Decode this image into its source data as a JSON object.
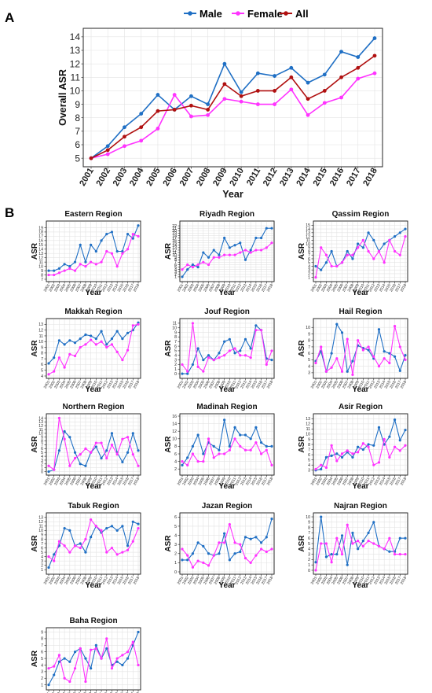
{
  "figure": {
    "panel_labels": [
      "A",
      "B"
    ],
    "axis_labels": {
      "x": "Year",
      "y_main": "Overall ASR",
      "y_small": "ASR"
    },
    "years": [
      "2001",
      "2002",
      "2003",
      "2004",
      "2005",
      "2006",
      "2007",
      "2008",
      "2009",
      "2010",
      "2011",
      "2012",
      "2013",
      "2014",
      "2015",
      "2016",
      "2017",
      "2018"
    ],
    "colors": {
      "Male": "#1f6fc4",
      "Female": "#ff33ff",
      "All": "#b01010"
    }
  },
  "chart_data": [
    {
      "type": "line",
      "panel": "A",
      "title": "",
      "xlabel": "Year",
      "ylabel": "Overall ASR",
      "ylim": [
        4.6,
        14.4
      ],
      "yticks": [
        5,
        6,
        7,
        8,
        9,
        10,
        11,
        12,
        13,
        14
      ],
      "grid": true,
      "legend": "top",
      "x": [
        "2001",
        "2002",
        "2003",
        "2004",
        "2005",
        "2006",
        "2007",
        "2008",
        "2009",
        "2010",
        "2011",
        "2012",
        "2013",
        "2014",
        "2015",
        "2016",
        "2017",
        "2018"
      ],
      "series": [
        {
          "name": "Male",
          "color": "#1f6fc4",
          "values": [
            5.0,
            5.9,
            7.3,
            8.3,
            9.7,
            8.6,
            9.6,
            9.0,
            12.0,
            9.9,
            11.3,
            11.1,
            11.7,
            10.6,
            11.2,
            12.9,
            12.5,
            13.9
          ]
        },
        {
          "name": "Female",
          "color": "#ff33ff",
          "values": [
            5.0,
            5.3,
            5.9,
            6.3,
            7.2,
            9.7,
            8.1,
            8.2,
            9.4,
            9.2,
            9.0,
            9.0,
            10.1,
            8.2,
            9.1,
            9.5,
            10.9,
            11.3
          ]
        },
        {
          "name": "All",
          "color": "#b01010",
          "values": [
            5.0,
            5.6,
            6.6,
            7.3,
            8.5,
            8.6,
            8.9,
            8.6,
            10.5,
            9.6,
            10.0,
            10.0,
            11.0,
            9.4,
            10.0,
            11.0,
            11.7,
            12.6
          ]
        }
      ]
    },
    {
      "type": "line",
      "panel": "B",
      "title": "Eastern Region",
      "xlabel": "Year",
      "ylabel": "ASR",
      "ylim": [
        7,
        20
      ],
      "yticks": [
        7,
        8,
        9,
        10,
        11,
        12,
        13,
        14,
        15,
        16,
        17,
        18,
        19
      ],
      "series": [
        {
          "name": "Male",
          "values": [
            9,
            9,
            9.5,
            10.5,
            10,
            11,
            15,
            11,
            15,
            13.5,
            16,
            17.5,
            18,
            13.5,
            13.5,
            17.5,
            16.5,
            19.5
          ]
        },
        {
          "name": "Female",
          "values": [
            8,
            8,
            8.5,
            9,
            9.5,
            9,
            10.5,
            10,
            11,
            10.5,
            11,
            13.5,
            13,
            10,
            13,
            14,
            17.5,
            17
          ]
        }
      ]
    },
    {
      "type": "line",
      "panel": "B",
      "title": "Riyadh Region",
      "xlabel": "Year",
      "ylabel": "ASR",
      "ylim": [
        0,
        23
      ],
      "yticks": [
        1,
        2,
        3,
        4,
        5,
        6,
        7,
        8,
        9,
        10,
        11,
        12,
        13,
        14,
        15,
        16,
        17,
        18,
        19,
        20,
        21,
        22
      ],
      "series": [
        {
          "name": "Male",
          "values": [
            1,
            4,
            6,
            5,
            11,
            9,
            12,
            10,
            17,
            13,
            14,
            15,
            8,
            12,
            17,
            17,
            21,
            21
          ]
        },
        {
          "name": "Female",
          "values": [
            4,
            6,
            5,
            6,
            7,
            6,
            9,
            9,
            10,
            10,
            10,
            11,
            12,
            11,
            12,
            12,
            13,
            15
          ]
        }
      ]
    },
    {
      "type": "line",
      "panel": "B",
      "title": "Qassim Region",
      "xlabel": "Year",
      "ylabel": "ASR",
      "ylim": [
        0.5,
        15.5
      ],
      "yticks": [
        1,
        2,
        3,
        4,
        5,
        6,
        7,
        8,
        9,
        10,
        11,
        12,
        13,
        14,
        15
      ],
      "series": [
        {
          "name": "Male",
          "values": [
            4,
            3,
            5,
            8,
            4,
            5,
            8,
            6,
            10,
            9,
            13,
            11,
            8,
            10,
            11,
            12,
            13,
            14
          ]
        },
        {
          "name": "Female",
          "values": [
            1,
            9,
            7,
            4,
            4,
            5,
            7,
            7,
            9,
            11,
            8,
            6,
            8,
            5,
            11,
            8,
            7,
            12
          ]
        }
      ]
    },
    {
      "type": "line",
      "panel": "B",
      "title": "Makkah Region",
      "xlabel": "Year",
      "ylabel": "ASR",
      "ylim": [
        4,
        13.6
      ],
      "yticks": [
        4,
        5,
        6,
        7,
        8,
        9,
        10,
        11,
        12,
        13
      ],
      "series": [
        {
          "name": "Male",
          "values": [
            6.2,
            7.2,
            10.2,
            9.5,
            10.2,
            9.8,
            10.5,
            11.2,
            11,
            10.5,
            11.8,
            9.5,
            10.5,
            11.8,
            10.5,
            11.5,
            12,
            13.3
          ]
        },
        {
          "name": "Female",
          "values": [
            4.3,
            4.8,
            7.2,
            5.5,
            7.8,
            7.5,
            9,
            9.5,
            10.3,
            9.5,
            10,
            9,
            9.5,
            8.2,
            6.8,
            8.5,
            12.8,
            13
          ]
        }
      ]
    },
    {
      "type": "line",
      "panel": "B",
      "title": "Jouf Region",
      "xlabel": "Year",
      "ylabel": "ASR",
      "ylim": [
        -0.5,
        11.5
      ],
      "yticks": [
        0,
        1,
        2,
        3,
        4,
        5,
        6,
        7,
        8,
        9,
        10,
        11
      ],
      "series": [
        {
          "name": "Male",
          "values": [
            0,
            0,
            2,
            5.5,
            3,
            4,
            3,
            4.5,
            7,
            7.5,
            4.5,
            5,
            7.5,
            5.5,
            10.5,
            9.5,
            3.3,
            3
          ]
        },
        {
          "name": "Female",
          "values": [
            2,
            0.5,
            11,
            1.5,
            0.5,
            3.5,
            3,
            3.5,
            4,
            5,
            5.5,
            4,
            4,
            3.5,
            9.5,
            9.5,
            2,
            5
          ]
        }
      ]
    },
    {
      "type": "line",
      "panel": "B",
      "title": "Hail Region",
      "xlabel": "Year",
      "ylabel": "ASR",
      "ylim": [
        2.5,
        11
      ],
      "yticks": [
        3,
        4,
        5,
        6,
        7,
        8,
        9,
        10
      ],
      "series": [
        {
          "name": "Male",
          "values": [
            4.8,
            6.3,
            3.2,
            6,
            10.5,
            9.2,
            3.2,
            4.8,
            7.2,
            6.8,
            6.5,
            5.2,
            9.7,
            6.3,
            6,
            5.5,
            3.3,
            5.7
          ]
        },
        {
          "name": "Female",
          "values": [
            4.5,
            7,
            3.2,
            3.8,
            5.2,
            3.2,
            8.2,
            2.7,
            8,
            6.5,
            7,
            5.5,
            4,
            5.2,
            4.5,
            10.2,
            7,
            5
          ]
        }
      ]
    },
    {
      "type": "line",
      "panel": "B",
      "title": "Northern Region",
      "xlabel": "Year",
      "ylabel": "ASR",
      "ylim": [
        -0.3,
        14.5
      ],
      "yticks": [
        0,
        1,
        2,
        3,
        4,
        5,
        6,
        7,
        8,
        9,
        10,
        11,
        12,
        13,
        14
      ],
      "series": [
        {
          "name": "Male",
          "values": [
            0,
            0.5,
            5.5,
            10.5,
            9,
            5,
            2,
            1.5,
            5,
            6.5,
            3.5,
            5.5,
            10,
            5,
            2.5,
            5,
            10,
            5.5
          ]
        },
        {
          "name": "Female",
          "values": [
            1.5,
            0.5,
            14,
            8.5,
            1.5,
            3.5,
            4.5,
            6,
            5,
            7.5,
            7.5,
            3.5,
            7,
            4.5,
            8.5,
            9,
            4.5,
            1.5
          ]
        }
      ]
    },
    {
      "type": "line",
      "panel": "B",
      "title": "Madinah Region",
      "xlabel": "Year",
      "ylabel": "ASR",
      "ylim": [
        1,
        16
      ],
      "yticks": [
        2,
        4,
        6,
        8,
        10,
        12,
        14,
        16
      ],
      "series": [
        {
          "name": "Male",
          "values": [
            3,
            5,
            8,
            11,
            6,
            9,
            8,
            7,
            15,
            8,
            13,
            11,
            11,
            10,
            13,
            9,
            8,
            8
          ]
        },
        {
          "name": "Female",
          "values": [
            4,
            3,
            6,
            4,
            4,
            10,
            5,
            6,
            6,
            7,
            10,
            8,
            7,
            7,
            9,
            6,
            7,
            3
          ]
        }
      ]
    },
    {
      "type": "line",
      "panel": "B",
      "title": "Asir Region",
      "xlabel": "Year",
      "ylabel": "ASR",
      "ylim": [
        2.5,
        13.5
      ],
      "yticks": [
        3,
        4,
        5,
        6,
        7,
        8,
        9,
        10,
        11,
        12,
        13
      ],
      "series": [
        {
          "name": "Male",
          "values": [
            3,
            3.2,
            5.5,
            5.8,
            6.2,
            5.5,
            6.5,
            5.5,
            7.5,
            7,
            8,
            7.8,
            11.3,
            8,
            9.5,
            12.8,
            8.8,
            10.8
          ]
        },
        {
          "name": "Female",
          "values": [
            3.2,
            4,
            3.5,
            7.8,
            4.8,
            6.2,
            6.8,
            6.2,
            6.5,
            8.2,
            7.5,
            4,
            4.5,
            9,
            5.5,
            7.5,
            6.8,
            7.8
          ]
        }
      ]
    },
    {
      "type": "line",
      "panel": "B",
      "title": "Tabuk Region",
      "xlabel": "Year",
      "ylabel": "ASR",
      "ylim": [
        0.5,
        13.5
      ],
      "yticks": [
        1,
        2,
        3,
        4,
        5,
        6,
        7,
        8,
        9,
        10,
        11,
        12,
        13
      ],
      "series": [
        {
          "name": "Male",
          "values": [
            1.5,
            4.5,
            6.5,
            10.5,
            10,
            6.5,
            7,
            5,
            8.5,
            11,
            9.5,
            10.5,
            11,
            10,
            11,
            6.5,
            12,
            11.5
          ]
        },
        {
          "name": "Female",
          "values": [
            4,
            3,
            7.5,
            6.5,
            5,
            6.5,
            6,
            8,
            12.5,
            11,
            10,
            5,
            6,
            4.5,
            5,
            5.5,
            7.5,
            10.5
          ]
        }
      ]
    },
    {
      "type": "line",
      "panel": "B",
      "title": "Jazan Region",
      "xlabel": "Year",
      "ylabel": "ASR",
      "ylim": [
        0,
        6.2
      ],
      "yticks": [
        0,
        1,
        2,
        3,
        4,
        5,
        6
      ],
      "series": [
        {
          "name": "Male",
          "values": [
            1.3,
            1.3,
            2,
            3.2,
            2.8,
            2,
            1.8,
            2,
            4.2,
            1.3,
            2,
            2.2,
            3.8,
            3.6,
            3.8,
            3.2,
            3.8,
            5.8
          ]
        },
        {
          "name": "Female",
          "values": [
            2.5,
            1.8,
            0.5,
            1.2,
            1,
            0.7,
            1.8,
            3.2,
            3.2,
            5.2,
            3.2,
            3,
            1.5,
            1,
            1.8,
            2.5,
            2.2,
            2.5
          ]
        }
      ]
    },
    {
      "type": "line",
      "panel": "B",
      "title": "Najran Region",
      "xlabel": "Year",
      "ylabel": "ASR",
      "ylim": [
        -0.3,
        10.3
      ],
      "yticks": [
        0,
        1,
        2,
        3,
        4,
        5,
        6,
        7,
        8,
        9,
        10
      ],
      "series": [
        {
          "name": "Male",
          "values": [
            1.5,
            10,
            2.5,
            3,
            3,
            6.5,
            1,
            7,
            4,
            5.5,
            7,
            9,
            4.5,
            4,
            3.5,
            3.5,
            6,
            6
          ]
        },
        {
          "name": "Female",
          "values": [
            0,
            5,
            5,
            1.5,
            6,
            3,
            8.5,
            5,
            5.5,
            4.5,
            5.5,
            5,
            4.5,
            4,
            6,
            3,
            3,
            3
          ]
        }
      ]
    },
    {
      "type": "line",
      "panel": "B",
      "title": "Baha Region",
      "xlabel": "Year",
      "ylabel": "ASR",
      "ylim": [
        0.6,
        9.3
      ],
      "yticks": [
        1,
        2,
        3,
        4,
        5,
        6,
        7,
        8,
        9
      ],
      "series": [
        {
          "name": "Male",
          "values": [
            1,
            2.5,
            4.5,
            5,
            4.5,
            6,
            6.5,
            5,
            3.5,
            7,
            5,
            6.5,
            4,
            4.5,
            4,
            5,
            7,
            9
          ]
        },
        {
          "name": "Female",
          "values": [
            3.5,
            3.8,
            5.5,
            2,
            1.5,
            3.5,
            6.5,
            1.5,
            6.3,
            6.5,
            5,
            8,
            3.5,
            5,
            5.5,
            6,
            7.5,
            4
          ]
        }
      ]
    }
  ]
}
